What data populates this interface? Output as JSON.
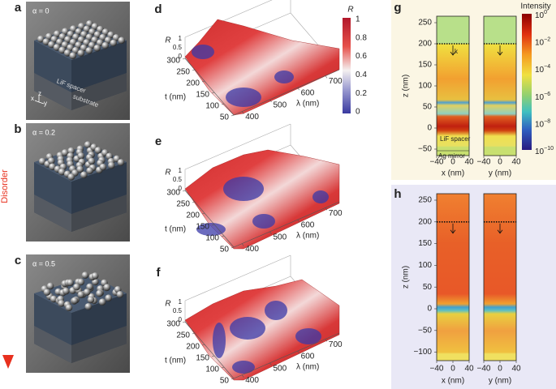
{
  "disorder": "Disorder",
  "structures": [
    {
      "label": "a",
      "alpha": "α = 0",
      "layers": [
        "LiF spacer",
        "substrate"
      ],
      "axes": [
        "x",
        "z",
        "y"
      ]
    },
    {
      "label": "b",
      "alpha": "α = 0.2"
    },
    {
      "label": "c",
      "alpha": "α = 0.5"
    }
  ],
  "reflectance_maps": [
    {
      "label": "d",
      "r_label": "R",
      "r_ticks": [
        "1",
        "0.5",
        "0"
      ],
      "t_label": "t (nm)",
      "t_ticks": [
        300,
        250,
        200,
        150,
        100,
        50
      ],
      "lambda_label": "λ (nm)",
      "lambda_ticks": [
        400,
        500,
        600,
        700
      ]
    },
    {
      "label": "e",
      "r_label": "R",
      "r_ticks": [
        "1",
        "0.5",
        "0"
      ],
      "t_label": "t (nm)",
      "t_ticks": [
        300,
        250,
        200,
        150,
        100,
        50
      ],
      "lambda_label": "λ (nm)",
      "lambda_ticks": [
        400,
        500,
        600,
        700
      ]
    },
    {
      "label": "f",
      "r_label": "R",
      "r_ticks": [
        "1",
        "0.5",
        "0"
      ],
      "t_label": "t (nm)",
      "t_ticks": [
        300,
        250,
        200,
        150,
        100,
        50
      ],
      "lambda_label": "λ (nm)",
      "lambda_ticks": [
        400,
        500,
        600,
        700
      ]
    }
  ],
  "r_colorbar": {
    "label": "R",
    "ticks": [
      "1",
      "0.8",
      "0.6",
      "0.4",
      "0.2",
      "0"
    ]
  },
  "field_maps": [
    {
      "label": "g",
      "z_label": "z (nm)",
      "z_ticks": [
        "250",
        "200",
        "150",
        "100",
        "50",
        "0",
        "−50"
      ],
      "columns": [
        {
          "axis_label": "x (nm)",
          "ticks": [
            "−40",
            "0",
            "40"
          ]
        },
        {
          "axis_label": "y (nm)",
          "ticks": [
            "−40",
            "0",
            "40"
          ]
        }
      ],
      "annotations": {
        "k": "k",
        "spacer": "LiF spacer",
        "mirror": "Ag mirror"
      }
    },
    {
      "label": "h",
      "z_label": "z (nm)",
      "z_ticks": [
        "250",
        "200",
        "150",
        "100",
        "50",
        "0",
        "−50",
        "−100"
      ],
      "columns": [
        {
          "axis_label": "x (nm)",
          "ticks": [
            "−40",
            "0",
            "40"
          ]
        },
        {
          "axis_label": "y (nm)",
          "ticks": [
            "−40",
            "0",
            "40"
          ]
        }
      ]
    }
  ],
  "intensity_colorbar": {
    "label": "Intensity",
    "ticks": [
      {
        "base": "10",
        "exponent": "0"
      },
      {
        "base": "10",
        "exponent": "−2"
      },
      {
        "base": "10",
        "exponent": "−4"
      },
      {
        "base": "10",
        "exponent": "−6"
      },
      {
        "base": "10",
        "exponent": "−8"
      },
      {
        "base": "10",
        "exponent": "−10"
      }
    ]
  }
}
